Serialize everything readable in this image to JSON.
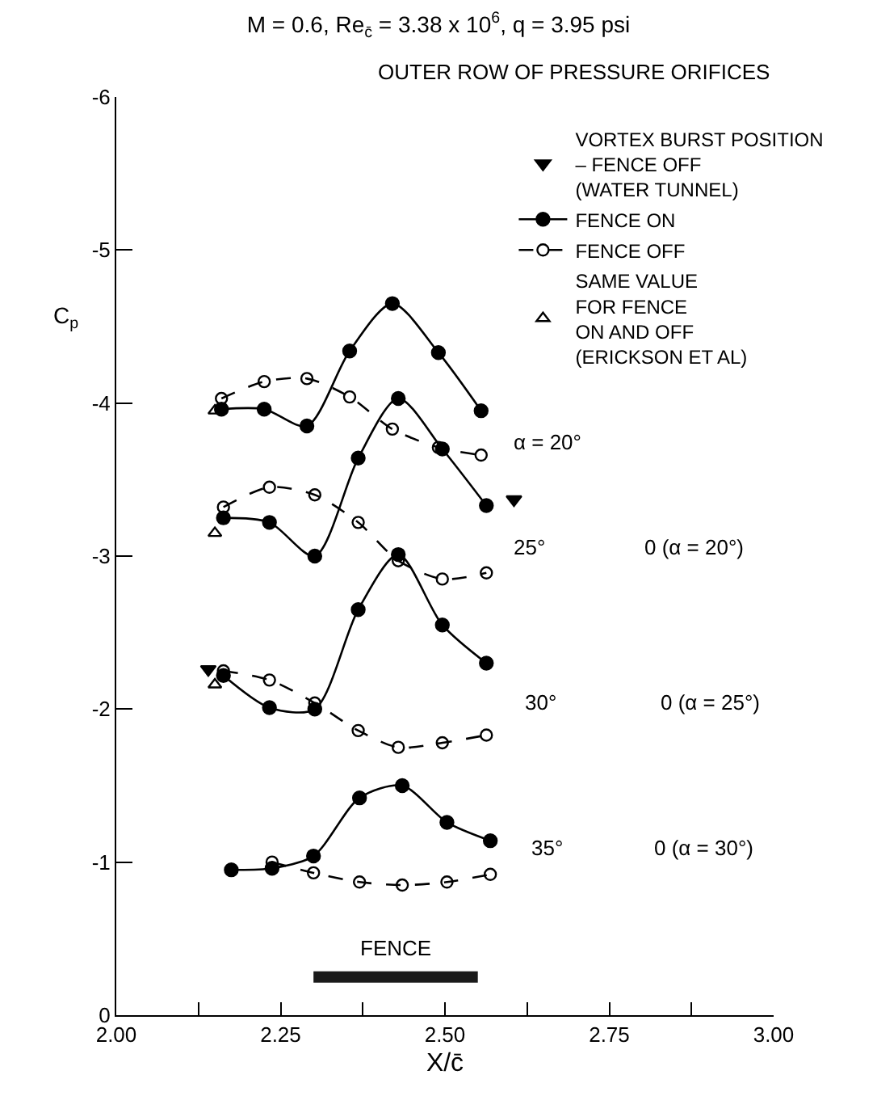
{
  "chart_data": {
    "type": "line",
    "title": "M = 0.6, Re$_{c̄}$ = 3.38 x 10$^{6}$, q = 3.95 psi",
    "subtitle": "OUTER ROW OF PRESSURE ORIFICES",
    "xlabel": "X/c̄",
    "ylabel": "C$_{p}$",
    "xlim": [
      2.0,
      3.0
    ],
    "xticks": [
      {
        "value": 2.0,
        "label": "2.00"
      },
      {
        "value": 2.125,
        "label": null
      },
      {
        "value": 2.25,
        "label": "2.25"
      },
      {
        "value": 2.375,
        "label": null
      },
      {
        "value": 2.5,
        "label": "2.50"
      },
      {
        "value": 2.625,
        "label": null
      },
      {
        "value": 2.75,
        "label": "2.75"
      },
      {
        "value": 2.875,
        "label": null
      },
      {
        "value": 3.0,
        "label": "3.00"
      }
    ],
    "ylim": [
      0,
      -6
    ],
    "yticks": [
      0,
      -1,
      -2,
      -3,
      -4,
      -5,
      -6
    ],
    "legend": "top right",
    "series": [
      {
        "name": "VORTEX BURST POSITION\n– FENCE OFF\n(WATER TUNNEL)",
        "type": "scatter",
        "marker": "triangle",
        "color": "#000000",
        "x": [
          2.605,
          2.14
        ],
        "values": [
          -3.37,
          -2.26
        ]
      },
      {
        "name": "FENCE ON",
        "marker": "circle",
        "line_style": "solid",
        "color": "#000000",
        "x": [
          2.16,
          2.225,
          2.29,
          2.355,
          2.42,
          2.49,
          2.555
        ],
        "values": [
          -3.96,
          -3.96,
          -3.85,
          -4.34,
          -4.65,
          -4.33,
          -3.95
        ]
      },
      {
        "name": "FENCE OFF",
        "marker": "circle",
        "line_style": "dashed",
        "color": "#000000",
        "x": [
          2.16,
          2.225,
          2.29,
          2.355,
          2.42,
          2.49,
          2.555
        ],
        "values": [
          -4.03,
          -4.14,
          -4.16,
          -4.04,
          -3.83,
          -3.71,
          -3.66
        ]
      },
      {
        "name": "SAME VALUE\nFOR FENCE\nON AND OFF\n(ERICKSON ET AL)",
        "type": "scatter",
        "marker": "triangle",
        "color": "#000000",
        "x": [
          2.15,
          2.15,
          2.15
        ],
        "values": [
          -3.95,
          -3.15,
          -2.16
        ]
      },
      {
        "marker": "circle",
        "line_style": "solid",
        "color": "#000000",
        "x": [
          2.163,
          2.233,
          2.302,
          2.368,
          2.429,
          2.496,
          2.563
        ],
        "values": [
          -3.25,
          -3.22,
          -3.0,
          -3.64,
          -4.03,
          -3.7,
          -3.33
        ]
      },
      {
        "marker": "circle",
        "line_style": "dashed",
        "color": "#000000",
        "x": [
          2.163,
          2.233,
          2.302,
          2.368,
          2.429,
          2.496,
          2.563
        ],
        "values": [
          -3.32,
          -3.45,
          -3.4,
          -3.22,
          -2.97,
          -2.85,
          -2.89
        ]
      },
      {
        "marker": "circle",
        "line_style": "solid",
        "color": "#000000",
        "x": [
          2.163,
          2.233,
          2.302,
          2.368,
          2.429,
          2.496,
          2.563
        ],
        "values": [
          -2.22,
          -2.01,
          -2.0,
          -2.65,
          -3.01,
          -2.55,
          -2.3
        ]
      },
      {
        "marker": "circle",
        "line_style": "dashed",
        "color": "#000000",
        "x": [
          2.163,
          2.233,
          2.302,
          2.368,
          2.429,
          2.496,
          2.563
        ],
        "values": [
          -2.25,
          -2.19,
          -2.04,
          -1.86,
          -1.75,
          -1.78,
          -1.83
        ]
      },
      {
        "marker": "circle",
        "line_style": "solid",
        "color": "#000000",
        "x": [
          2.175,
          2.237,
          2.3,
          2.37,
          2.435,
          2.503,
          2.569
        ],
        "values": [
          -0.95,
          -0.96,
          -1.04,
          -1.42,
          -1.5,
          -1.26,
          -1.14
        ]
      },
      {
        "marker": "circle",
        "line_style": "dashed",
        "color": "#000000",
        "x": [
          2.237,
          2.3,
          2.37,
          2.435,
          2.503,
          2.569
        ],
        "values": [
          -1.0,
          -0.93,
          -0.87,
          -0.85,
          -0.87,
          -0.92
        ]
      },
      {
        "name": "FENCE",
        "marker": "none",
        "line_style": "solid",
        "color": "#1a1a1a",
        "x": [
          2.3,
          2.55
        ],
        "values": [
          -0.25,
          -0.25
        ]
      }
    ],
    "annotations": [
      "α = 20°",
      "25°",
      "30°",
      "35°",
      "0 (α = 20°)",
      "0 (α = 25°)",
      "0 (α = 30°)"
    ]
  }
}
